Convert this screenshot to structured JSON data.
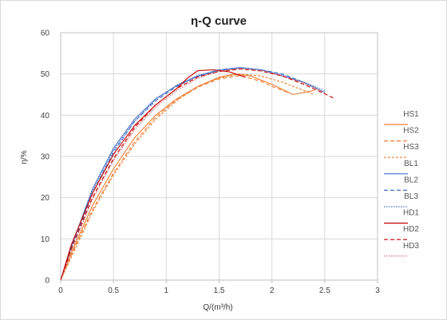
{
  "chart_data": {
    "type": "line",
    "title": "η-Q  curve",
    "xlabel": "Q/(m³/h)",
    "ylabel": "η/%",
    "xlim": [
      0,
      3
    ],
    "ylim": [
      0,
      60
    ],
    "x_ticks": [
      "0",
      "0.5",
      "1",
      "1.5",
      "2",
      "2.5",
      "3"
    ],
    "y_ticks": [
      "0",
      "10",
      "20",
      "30",
      "40",
      "50",
      "60"
    ],
    "grid": true,
    "legend_position": "right",
    "series": [
      {
        "name": "HS1",
        "color": "#ed7d31",
        "dash": "",
        "points": [
          [
            0,
            0
          ],
          [
            0.1,
            6.5
          ],
          [
            0.3,
            18
          ],
          [
            0.5,
            27
          ],
          [
            0.7,
            34.5
          ],
          [
            0.9,
            40
          ],
          [
            1.1,
            44
          ],
          [
            1.3,
            47
          ],
          [
            1.5,
            49.2
          ],
          [
            1.65,
            50
          ],
          [
            1.8,
            49.5
          ],
          [
            2.0,
            47.5
          ],
          [
            2.2,
            45
          ],
          [
            2.4,
            46
          ]
        ]
      },
      {
        "name": "HS2",
        "color": "#ed7d31",
        "dash": "5,3",
        "points": [
          [
            0,
            0
          ],
          [
            0.1,
            6
          ],
          [
            0.3,
            17
          ],
          [
            0.5,
            26
          ],
          [
            0.7,
            33.5
          ],
          [
            0.9,
            39.5
          ],
          [
            1.1,
            43.8
          ],
          [
            1.3,
            46.8
          ],
          [
            1.5,
            48.8
          ],
          [
            1.7,
            49.6
          ],
          [
            1.9,
            48.2
          ],
          [
            2.0,
            47
          ],
          [
            2.15,
            45.5
          ]
        ]
      },
      {
        "name": "HS3",
        "color": "#ed7d31",
        "dash": "3,2",
        "points": [
          [
            0,
            0
          ],
          [
            0.1,
            5.5
          ],
          [
            0.3,
            16.5
          ],
          [
            0.5,
            25.5
          ],
          [
            0.7,
            33
          ],
          [
            0.9,
            39
          ],
          [
            1.1,
            43.5
          ],
          [
            1.3,
            47
          ],
          [
            1.5,
            49
          ],
          [
            1.7,
            50
          ],
          [
            1.9,
            49.5
          ],
          [
            2.1,
            48
          ],
          [
            2.3,
            46
          ],
          [
            2.4,
            45
          ]
        ]
      },
      {
        "name": "BL1",
        "color": "#4472c4",
        "dash": "",
        "points": [
          [
            0,
            0
          ],
          [
            0.1,
            8
          ],
          [
            0.3,
            22
          ],
          [
            0.5,
            32
          ],
          [
            0.7,
            39
          ],
          [
            0.9,
            44
          ],
          [
            1.1,
            47.2
          ],
          [
            1.3,
            49.5
          ],
          [
            1.5,
            50.8
          ],
          [
            1.7,
            51.5
          ],
          [
            1.9,
            51
          ],
          [
            2.1,
            49.5
          ],
          [
            2.3,
            48
          ],
          [
            2.5,
            45.5
          ]
        ]
      },
      {
        "name": "BL2",
        "color": "#4472c4",
        "dash": "5,3",
        "points": [
          [
            0,
            0
          ],
          [
            0.1,
            7.5
          ],
          [
            0.3,
            21
          ],
          [
            0.5,
            31
          ],
          [
            0.7,
            38.5
          ],
          [
            0.9,
            43.5
          ],
          [
            1.1,
            47
          ],
          [
            1.3,
            49.5
          ],
          [
            1.5,
            51
          ],
          [
            1.7,
            51.5
          ],
          [
            1.9,
            51
          ],
          [
            2.1,
            50
          ],
          [
            2.3,
            48
          ],
          [
            2.5,
            45.5
          ]
        ]
      },
      {
        "name": "BL3",
        "color": "#4472c4",
        "dash": "1.5,1.5",
        "points": [
          [
            0,
            0
          ],
          [
            0.1,
            8
          ],
          [
            0.3,
            21.5
          ],
          [
            0.5,
            31.5
          ],
          [
            0.7,
            38.5
          ],
          [
            0.9,
            43.8
          ],
          [
            1.1,
            47.3
          ],
          [
            1.3,
            49.7
          ],
          [
            1.5,
            51
          ],
          [
            1.7,
            51.6
          ],
          [
            1.9,
            51
          ],
          [
            2.1,
            49.8
          ],
          [
            2.3,
            48
          ],
          [
            2.5,
            46
          ]
        ]
      },
      {
        "name": "HD1",
        "color": "#c00000",
        "dash": "",
        "points": [
          [
            0,
            0
          ],
          [
            0.1,
            8.5
          ],
          [
            0.3,
            21
          ],
          [
            0.5,
            30.5
          ],
          [
            0.7,
            37.5
          ],
          [
            0.9,
            42.5
          ],
          [
            1.1,
            46.5
          ],
          [
            1.2,
            49
          ],
          [
            1.3,
            50.8
          ],
          [
            1.45,
            51
          ],
          [
            1.6,
            50.5
          ],
          [
            1.75,
            49.2
          ]
        ]
      },
      {
        "name": "HD2",
        "color": "#c00000",
        "dash": "5,3",
        "points": [
          [
            0,
            0
          ],
          [
            0.1,
            7.5
          ],
          [
            0.3,
            20
          ],
          [
            0.5,
            29.5
          ],
          [
            0.7,
            37
          ],
          [
            0.9,
            42.5
          ],
          [
            1.1,
            46.5
          ],
          [
            1.3,
            49.3
          ],
          [
            1.5,
            50.6
          ],
          [
            1.7,
            51.2
          ],
          [
            1.9,
            50.7
          ],
          [
            2.1,
            49.5
          ],
          [
            2.3,
            47.5
          ],
          [
            2.5,
            45.2
          ],
          [
            2.58,
            44.2
          ]
        ]
      },
      {
        "name": "HD3",
        "color": "#e06060",
        "dash": "1.5,1.5",
        "points": [
          [
            0,
            0
          ],
          [
            0.1,
            7
          ],
          [
            0.3,
            19.5
          ],
          [
            0.5,
            29
          ],
          [
            0.7,
            36.5
          ],
          [
            0.9,
            42
          ],
          [
            1.1,
            46
          ],
          [
            1.3,
            49
          ],
          [
            1.5,
            50.7
          ],
          [
            1.7,
            51.3
          ],
          [
            1.9,
            50.8
          ],
          [
            2.1,
            49.6
          ],
          [
            2.3,
            47.8
          ],
          [
            2.5,
            45.5
          ]
        ]
      }
    ]
  }
}
